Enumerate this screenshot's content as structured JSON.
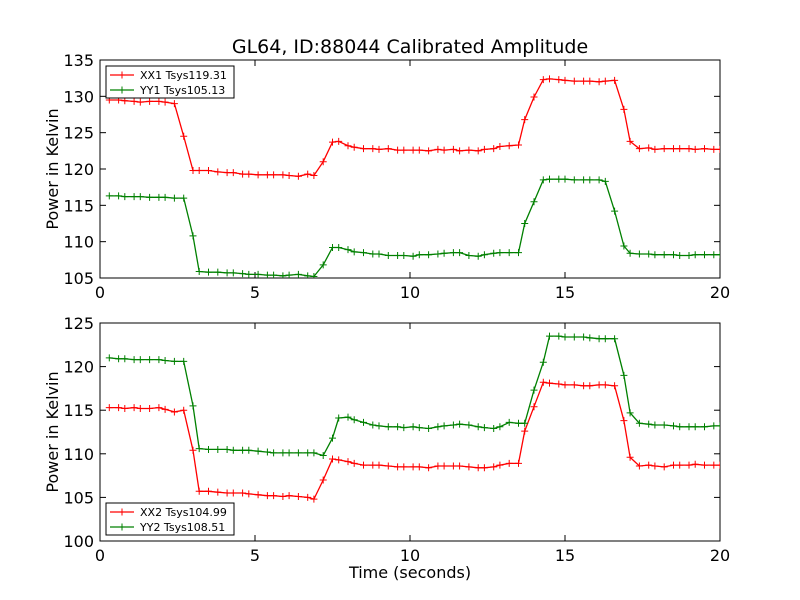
{
  "chart_data": [
    {
      "type": "line",
      "title": "GL64, ID:88044 Calibrated Amplitude",
      "xlabel": "",
      "ylabel": "Power in Kelvin",
      "xlim": [
        0,
        20
      ],
      "ylim": [
        105,
        135
      ],
      "xticks": [
        "0",
        "5",
        "10",
        "15",
        "20"
      ],
      "yticks": [
        "105",
        "110",
        "115",
        "120",
        "125",
        "130",
        "135"
      ],
      "grid": false,
      "legend_position": "upper-left",
      "x": [
        0.3,
        0.6,
        0.8,
        1.1,
        1.3,
        1.6,
        1.9,
        2.1,
        2.4,
        2.7,
        3.0,
        3.2,
        3.5,
        3.8,
        4.1,
        4.3,
        4.6,
        4.8,
        5.1,
        5.4,
        5.6,
        5.9,
        6.1,
        6.4,
        6.7,
        6.9,
        7.2,
        7.5,
        7.7,
        8.0,
        8.2,
        8.5,
        8.8,
        9.0,
        9.3,
        9.6,
        9.8,
        10.1,
        10.3,
        10.6,
        10.9,
        11.1,
        11.4,
        11.6,
        11.9,
        12.2,
        12.4,
        12.7,
        12.9,
        13.2,
        13.5,
        13.7,
        14.0,
        14.3,
        14.5,
        14.8,
        15.0,
        15.3,
        15.6,
        15.8,
        16.1,
        16.3,
        16.6,
        16.9,
        17.1,
        17.4,
        17.7,
        17.9,
        18.2,
        18.5,
        18.7,
        19.0,
        19.2,
        19.5,
        19.8,
        20.0
      ],
      "series": [
        {
          "name": "XX1 Tsys119.31",
          "color": "#ff0000",
          "values": [
            129.5,
            129.5,
            129.4,
            129.3,
            129.2,
            129.3,
            129.3,
            129.2,
            129.0,
            124.5,
            119.8,
            119.8,
            119.8,
            119.6,
            119.5,
            119.5,
            119.3,
            119.3,
            119.2,
            119.2,
            119.2,
            119.2,
            119.1,
            119.0,
            119.3,
            119.1,
            121.0,
            123.7,
            123.8,
            123.2,
            123.0,
            122.8,
            122.8,
            122.7,
            122.8,
            122.6,
            122.6,
            122.6,
            122.6,
            122.5,
            122.7,
            122.6,
            122.7,
            122.5,
            122.6,
            122.5,
            122.7,
            122.8,
            123.1,
            123.2,
            123.3,
            126.8,
            129.9,
            132.3,
            132.4,
            132.3,
            132.2,
            132.1,
            132.1,
            132.1,
            132.0,
            132.1,
            132.2,
            128.2,
            123.8,
            122.8,
            122.9,
            122.7,
            122.8,
            122.8,
            122.8,
            122.8,
            122.7,
            122.8,
            122.7,
            122.7
          ]
        },
        {
          "name": "YY1 Tsys105.13",
          "color": "#008000",
          "values": [
            116.3,
            116.3,
            116.2,
            116.2,
            116.2,
            116.1,
            116.1,
            116.1,
            116.0,
            116.0,
            110.8,
            105.9,
            105.8,
            105.8,
            105.7,
            105.7,
            105.6,
            105.5,
            105.5,
            105.4,
            105.4,
            105.3,
            105.4,
            105.5,
            105.3,
            105.2,
            106.8,
            109.2,
            109.2,
            108.9,
            108.6,
            108.5,
            108.3,
            108.3,
            108.1,
            108.1,
            108.1,
            108.0,
            108.2,
            108.2,
            108.3,
            108.4,
            108.5,
            108.5,
            108.1,
            108.0,
            108.2,
            108.4,
            108.5,
            108.5,
            108.5,
            112.5,
            115.5,
            118.5,
            118.6,
            118.6,
            118.6,
            118.5,
            118.5,
            118.5,
            118.5,
            118.3,
            114.2,
            109.4,
            108.4,
            108.3,
            108.3,
            108.2,
            108.2,
            108.2,
            108.1,
            108.1,
            108.2,
            108.2,
            108.2,
            108.2
          ]
        }
      ]
    },
    {
      "type": "line",
      "title": "",
      "xlabel": "Time (seconds)",
      "ylabel": "Power in Kelvin",
      "xlim": [
        0,
        20
      ],
      "ylim": [
        100,
        125
      ],
      "xticks": [
        "0",
        "5",
        "10",
        "15",
        "20"
      ],
      "yticks": [
        "100",
        "105",
        "110",
        "115",
        "120",
        "125"
      ],
      "grid": false,
      "legend_position": "lower-left",
      "x": [
        0.3,
        0.6,
        0.8,
        1.1,
        1.3,
        1.6,
        1.9,
        2.1,
        2.4,
        2.7,
        3.0,
        3.2,
        3.5,
        3.8,
        4.1,
        4.3,
        4.6,
        4.8,
        5.1,
        5.4,
        5.6,
        5.9,
        6.1,
        6.4,
        6.7,
        6.9,
        7.2,
        7.5,
        7.7,
        8.0,
        8.2,
        8.5,
        8.8,
        9.0,
        9.3,
        9.6,
        9.8,
        10.1,
        10.3,
        10.6,
        10.9,
        11.1,
        11.4,
        11.6,
        11.9,
        12.2,
        12.4,
        12.7,
        12.9,
        13.2,
        13.5,
        13.7,
        14.0,
        14.3,
        14.5,
        14.8,
        15.0,
        15.3,
        15.6,
        15.8,
        16.1,
        16.3,
        16.6,
        16.9,
        17.1,
        17.4,
        17.7,
        17.9,
        18.2,
        18.5,
        18.7,
        19.0,
        19.2,
        19.5,
        19.8,
        20.0
      ],
      "series": [
        {
          "name": "XX2 Tsys104.99",
          "color": "#ff0000",
          "values": [
            115.3,
            115.3,
            115.2,
            115.3,
            115.2,
            115.2,
            115.3,
            115.1,
            114.8,
            115.0,
            110.4,
            105.7,
            105.7,
            105.6,
            105.5,
            105.5,
            105.5,
            105.4,
            105.3,
            105.2,
            105.2,
            105.1,
            105.2,
            105.1,
            105.0,
            104.8,
            107.0,
            109.4,
            109.3,
            109.1,
            108.9,
            108.7,
            108.7,
            108.7,
            108.6,
            108.5,
            108.5,
            108.5,
            108.5,
            108.4,
            108.6,
            108.6,
            108.6,
            108.6,
            108.5,
            108.4,
            108.4,
            108.5,
            108.7,
            108.9,
            108.9,
            112.6,
            115.4,
            118.2,
            118.1,
            118.0,
            117.9,
            117.9,
            117.8,
            117.8,
            117.9,
            117.9,
            117.8,
            113.8,
            109.6,
            108.6,
            108.7,
            108.6,
            108.5,
            108.7,
            108.7,
            108.7,
            108.8,
            108.7,
            108.7,
            108.7
          ]
        },
        {
          "name": "YY2 Tsys108.51",
          "color": "#008000",
          "values": [
            121.0,
            120.9,
            120.9,
            120.8,
            120.8,
            120.8,
            120.8,
            120.7,
            120.6,
            120.6,
            115.5,
            110.6,
            110.5,
            110.5,
            110.5,
            110.4,
            110.4,
            110.4,
            110.3,
            110.2,
            110.1,
            110.1,
            110.1,
            110.1,
            110.1,
            110.1,
            109.8,
            111.8,
            114.1,
            114.2,
            113.9,
            113.6,
            113.3,
            113.2,
            113.1,
            113.1,
            113.0,
            113.1,
            113.0,
            112.9,
            113.1,
            113.2,
            113.3,
            113.4,
            113.3,
            113.1,
            113.0,
            112.9,
            113.1,
            113.6,
            113.5,
            113.5,
            117.3,
            120.5,
            123.5,
            123.5,
            123.4,
            123.4,
            123.4,
            123.3,
            123.2,
            123.2,
            123.2,
            119.0,
            114.7,
            113.5,
            113.4,
            113.3,
            113.3,
            113.2,
            113.1,
            113.1,
            113.1,
            113.1,
            113.2,
            113.2
          ]
        }
      ]
    }
  ]
}
